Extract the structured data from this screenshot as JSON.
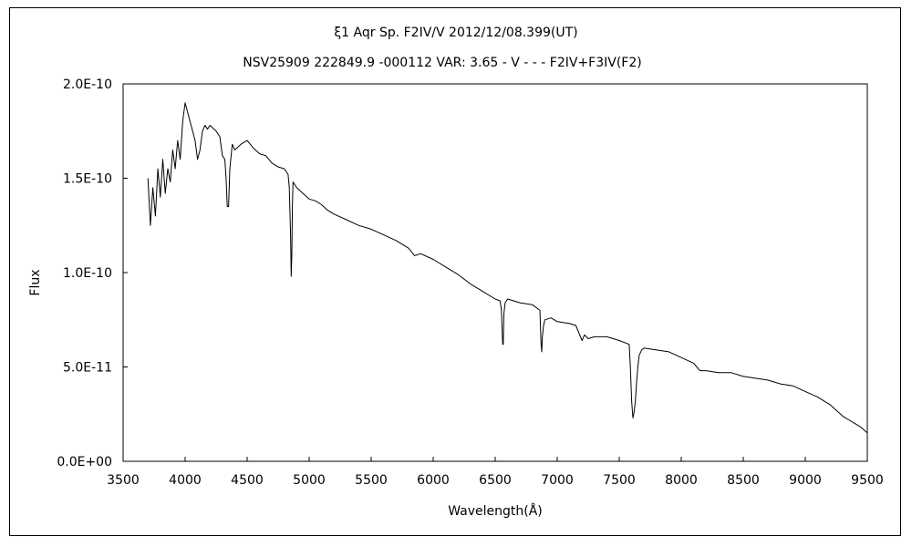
{
  "chart_data": {
    "type": "line",
    "title": "ξ1 Aqr Sp. F2IV/V 2012/12/08.399(UT)",
    "subtitle": "NSV25909 222849.9 -000112 VAR: 3.65 - V - - - F2IV+F3IV(F2)",
    "xlabel": "Wavelength(Å)",
    "ylabel": "Flux",
    "xlim": [
      3500,
      9500
    ],
    "ylim": [
      0,
      2e-10
    ],
    "xticks": [
      3500,
      4000,
      4500,
      5000,
      5500,
      6000,
      6500,
      7000,
      7500,
      8000,
      8500,
      9000,
      9500
    ],
    "xtick_labels": [
      "3500",
      "4000",
      "4500",
      "5000",
      "5500",
      "6000",
      "6500",
      "7000",
      "7500",
      "8000",
      "8500",
      "9000",
      "9500"
    ],
    "yticks": [
      0,
      5e-11,
      1e-10,
      1.5e-10,
      2e-10
    ],
    "ytick_labels": [
      "0.0E+00",
      "5.0E-11",
      "1.0E-10",
      "1.5E-10",
      "2.0E-10"
    ],
    "grid": false,
    "legend": "none",
    "line_color": "#000000",
    "series": [
      {
        "x": [
          3700,
          3720,
          3740,
          3760,
          3780,
          3800,
          3820,
          3840,
          3860,
          3880,
          3900,
          3920,
          3940,
          3960,
          3980,
          4000,
          4020,
          4040,
          4060,
          4080,
          4100,
          4120,
          4140,
          4160,
          4180,
          4200,
          4250,
          4280,
          4300,
          4320,
          4330,
          4340,
          4350,
          4360,
          4380,
          4400,
          4450,
          4500,
          4550,
          4600,
          4650,
          4700,
          4750,
          4800,
          4830,
          4840,
          4850,
          4855,
          4860,
          4865,
          4870,
          4880,
          4900,
          4950,
          5000,
          5050,
          5100,
          5150,
          5200,
          5300,
          5400,
          5500,
          5600,
          5700,
          5800,
          5850,
          5900,
          6000,
          6100,
          6200,
          6300,
          6400,
          6500,
          6540,
          6550,
          6560,
          6565,
          6570,
          6580,
          6600,
          6700,
          6800,
          6860,
          6870,
          6875,
          6880,
          6890,
          6900,
          6950,
          7000,
          7100,
          7150,
          7200,
          7220,
          7250,
          7300,
          7400,
          7500,
          7580,
          7590,
          7600,
          7610,
          7620,
          7630,
          7640,
          7650,
          7660,
          7680,
          7700,
          7800,
          7900,
          8000,
          8100,
          8150,
          8200,
          8300,
          8400,
          8500,
          8600,
          8700,
          8800,
          8900,
          9000,
          9100,
          9200,
          9300,
          9350,
          9400,
          9450,
          9500
        ],
        "y": [
          1.5e-10,
          1.25e-10,
          1.45e-10,
          1.3e-10,
          1.55e-10,
          1.4e-10,
          1.6e-10,
          1.42e-10,
          1.55e-10,
          1.48e-10,
          1.65e-10,
          1.55e-10,
          1.7e-10,
          1.6e-10,
          1.8e-10,
          1.9e-10,
          1.85e-10,
          1.8e-10,
          1.75e-10,
          1.7e-10,
          1.6e-10,
          1.65e-10,
          1.75e-10,
          1.78e-10,
          1.76e-10,
          1.78e-10,
          1.75e-10,
          1.72e-10,
          1.62e-10,
          1.6e-10,
          1.5e-10,
          1.35e-10,
          1.35e-10,
          1.55e-10,
          1.68e-10,
          1.65e-10,
          1.68e-10,
          1.7e-10,
          1.66e-10,
          1.63e-10,
          1.62e-10,
          1.58e-10,
          1.56e-10,
          1.55e-10,
          1.52e-10,
          1.45e-10,
          1.2e-10,
          9.8e-11,
          1.1e-10,
          1.35e-10,
          1.48e-10,
          1.47e-10,
          1.45e-10,
          1.42e-10,
          1.39e-10,
          1.38e-10,
          1.36e-10,
          1.33e-10,
          1.31e-10,
          1.28e-10,
          1.25e-10,
          1.23e-10,
          1.2e-10,
          1.17e-10,
          1.13e-10,
          1.09e-10,
          1.1e-10,
          1.07e-10,
          1.03e-10,
          9.9e-11,
          9.4e-11,
          9e-11,
          8.6e-11,
          8.5e-11,
          8e-11,
          6.2e-11,
          6.2e-11,
          7.8e-11,
          8.4e-11,
          8.6e-11,
          8.4e-11,
          8.3e-11,
          8e-11,
          6.2e-11,
          5.8e-11,
          6.6e-11,
          7.2e-11,
          7.5e-11,
          7.6e-11,
          7.4e-11,
          7.3e-11,
          7.2e-11,
          6.4e-11,
          6.7e-11,
          6.5e-11,
          6.6e-11,
          6.6e-11,
          6.4e-11,
          6.2e-11,
          5e-11,
          3.2e-11,
          2.3e-11,
          2.6e-11,
          3.2e-11,
          4.2e-11,
          5e-11,
          5.6e-11,
          5.9e-11,
          6e-11,
          5.9e-11,
          5.8e-11,
          5.5e-11,
          5.2e-11,
          4.8e-11,
          4.8e-11,
          4.7e-11,
          4.7e-11,
          4.5e-11,
          4.4e-11,
          4.3e-11,
          4.1e-11,
          4e-11,
          3.7e-11,
          3.4e-11,
          3e-11,
          2.4e-11,
          2.2e-11,
          2e-11,
          1.8e-11,
          1.5e-11
        ]
      }
    ]
  }
}
